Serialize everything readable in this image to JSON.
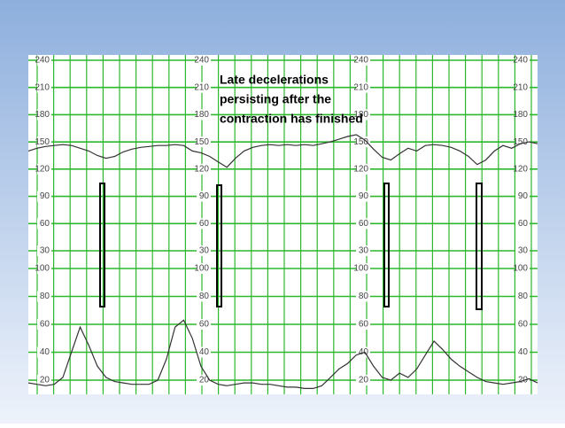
{
  "annotation": [
    "Late decelerations",
    "persisting after the",
    "contraction has finished"
  ],
  "chart_data": [
    {
      "type": "line",
      "ylim": [
        30,
        240
      ],
      "yticks": [
        30,
        60,
        90,
        120,
        150,
        180,
        210,
        240
      ],
      "grid": true,
      "series": [
        {
          "color": "#333333",
          "values": [
            140,
            143,
            145,
            146,
            147,
            146,
            143,
            140,
            135,
            132,
            134,
            139,
            142,
            144,
            145,
            146,
            146,
            147,
            146,
            140,
            138,
            134,
            128,
            122,
            132,
            140,
            144,
            146,
            147,
            146,
            147,
            146,
            147,
            146,
            148,
            150,
            153,
            156,
            158,
            152,
            142,
            133,
            130,
            137,
            143,
            140,
            146,
            147,
            146,
            144,
            140,
            134,
            125,
            130,
            140,
            146,
            143,
            148,
            150,
            148
          ]
        }
      ]
    },
    {
      "type": "line",
      "ylim": [
        10,
        100
      ],
      "yticks": [
        20,
        40,
        60,
        80,
        100
      ],
      "grid": true,
      "series": [
        {
          "color": "#333333",
          "values": [
            18,
            17,
            16,
            17,
            22,
            40,
            58,
            45,
            30,
            22,
            19,
            18,
            17,
            17,
            17,
            20,
            35,
            58,
            63,
            50,
            30,
            20,
            17,
            16,
            17,
            18,
            18,
            17,
            17,
            16,
            15,
            15,
            14,
            14,
            16,
            22,
            28,
            32,
            38,
            40,
            30,
            22,
            20,
            25,
            22,
            28,
            38,
            48,
            42,
            35,
            30,
            26,
            22,
            19,
            18,
            17,
            18,
            19,
            21,
            18
          ]
        }
      ]
    }
  ]
}
